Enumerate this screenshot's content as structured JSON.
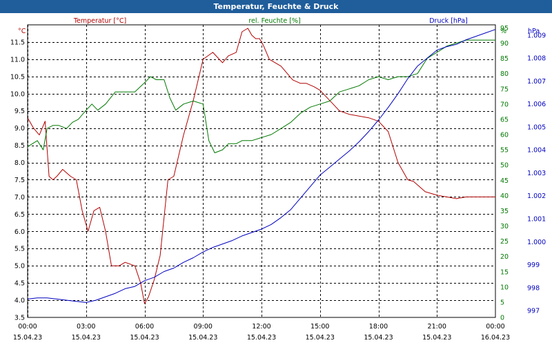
{
  "window": {
    "title": "Temperatur, Feuchte & Druck"
  },
  "colors": {
    "temperature": "#b00000",
    "humidity": "#007800",
    "pressure": "#0000c0",
    "axis_text": "#000000",
    "title_bar": "#1f5d9b"
  },
  "chart_data": {
    "type": "line",
    "title": "Temperatur, Feuchte & Druck",
    "grid": true,
    "x": {
      "range": [
        "15.04.23 00:00",
        "16.04.23 00:00"
      ],
      "ticks": [
        {
          "time": "00:00",
          "date": "15.04.23",
          "hour": 0
        },
        {
          "time": "03:00",
          "date": "15.04.23",
          "hour": 3
        },
        {
          "time": "06:00",
          "date": "15.04.23",
          "hour": 6
        },
        {
          "time": "09:00",
          "date": "15.04.23",
          "hour": 9
        },
        {
          "time": "12:00",
          "date": "15.04.23",
          "hour": 12
        },
        {
          "time": "15:00",
          "date": "15.04.23",
          "hour": 15
        },
        {
          "time": "18:00",
          "date": "15.04.23",
          "hour": 18
        },
        {
          "time": "21:00",
          "date": "15.04.23",
          "hour": 21
        },
        {
          "time": "00:00",
          "date": "16.04.23",
          "hour": 24
        }
      ]
    },
    "axes": {
      "temperature": {
        "label": "Temperatur [°C]",
        "unit": "°C",
        "range": [
          3.5,
          12.0
        ],
        "ticks": [
          "3.5",
          "4.0",
          "4.5",
          "5.0",
          "5.5",
          "6.0",
          "6.5",
          "7.0",
          "7.5",
          "8.0",
          "8.5",
          "9.0",
          "9.5",
          "10.0",
          "10.5",
          "11.0",
          "11.5"
        ]
      },
      "humidity": {
        "label": "rel. Feuchte [%]",
        "unit": "%",
        "range": [
          0,
          96
        ],
        "ticks": [
          "0",
          "5",
          "10",
          "15",
          "20",
          "25",
          "30",
          "35",
          "40",
          "45",
          "50",
          "55",
          "60",
          "65",
          "70",
          "75",
          "80",
          "85",
          "90",
          "95"
        ]
      },
      "pressure": {
        "label": "Druck [hPa]",
        "unit": "hPa",
        "range": [
          996.7,
          1009.45
        ],
        "ticks": [
          "997",
          "998",
          "999",
          "1.000",
          "1.001",
          "1.002",
          "1.003",
          "1.004",
          "1.005",
          "1.006",
          "1.007",
          "1.008",
          "1.009"
        ]
      }
    },
    "series": [
      {
        "name": "Temperatur [°C]",
        "axis": "temperature",
        "color": "#b00000",
        "x": [
          0,
          0.3,
          0.6,
          0.9,
          1.1,
          1.3,
          1.5,
          1.8,
          2.2,
          2.5,
          2.8,
          3.1,
          3.4,
          3.7,
          4.0,
          4.3,
          4.7,
          5.0,
          5.5,
          5.8,
          6.0,
          6.2,
          6.5,
          6.8,
          7.2,
          7.5,
          8.0,
          8.5,
          9.0,
          9.5,
          10.0,
          10.3,
          10.7,
          11.0,
          11.3,
          11.5,
          11.7,
          11.9,
          12.1,
          12.4,
          12.7,
          13.0,
          13.3,
          13.6,
          14.0,
          14.3,
          14.7,
          15.0,
          15.5,
          16.0,
          16.5,
          17.0,
          17.5,
          18.0,
          18.5,
          19.0,
          19.5,
          19.8,
          20.1,
          20.4,
          20.7,
          21.0,
          21.5,
          22.0,
          22.5,
          23.0,
          23.5,
          24.0
        ],
        "values": [
          9.3,
          9.0,
          8.8,
          9.2,
          7.6,
          7.5,
          7.6,
          7.8,
          7.6,
          7.5,
          6.6,
          6.0,
          6.6,
          6.7,
          6.0,
          5.0,
          5.0,
          5.1,
          5.0,
          4.5,
          3.9,
          4.1,
          4.6,
          5.3,
          7.5,
          7.6,
          8.8,
          9.8,
          11.0,
          11.2,
          10.9,
          11.1,
          11.2,
          11.8,
          11.9,
          11.7,
          11.6,
          11.6,
          11.4,
          11.0,
          10.9,
          10.8,
          10.6,
          10.4,
          10.3,
          10.3,
          10.2,
          10.1,
          9.8,
          9.5,
          9.4,
          9.35,
          9.3,
          9.2,
          8.9,
          8.0,
          7.5,
          7.45,
          7.3,
          7.15,
          7.1,
          7.05,
          7.0,
          6.95,
          7.0,
          7.0,
          7.0,
          7.0
        ]
      },
      {
        "name": "rel. Feuchte [%]",
        "axis": "humidity",
        "color": "#007800",
        "x": [
          0,
          0.5,
          0.8,
          1.0,
          1.3,
          1.6,
          2.0,
          2.3,
          2.6,
          3.0,
          3.3,
          3.6,
          4.0,
          4.5,
          5.0,
          5.5,
          6.0,
          6.3,
          6.6,
          7.0,
          7.3,
          7.6,
          8.0,
          8.5,
          9.0,
          9.3,
          9.6,
          10.0,
          10.3,
          10.7,
          11.0,
          11.5,
          12.0,
          12.5,
          13.0,
          13.5,
          14.0,
          14.5,
          15.0,
          15.5,
          16.0,
          16.5,
          17.0,
          17.5,
          18.0,
          18.5,
          19.0,
          19.5,
          20.0,
          20.5,
          21.0,
          21.5,
          22.0,
          22.5,
          23.0,
          23.5,
          24.0
        ],
        "values": [
          56,
          58,
          55,
          62,
          63,
          63,
          62,
          64,
          65,
          68,
          70,
          68,
          70,
          74,
          74,
          74,
          77,
          79,
          78,
          78,
          72,
          68,
          70,
          71,
          70,
          58,
          54,
          55,
          57,
          57,
          58,
          58,
          59,
          60,
          62,
          64,
          67,
          69,
          70,
          71,
          74,
          75,
          76,
          78,
          79,
          78,
          79,
          79,
          80,
          85,
          87,
          89,
          90,
          91,
          91,
          91,
          91
        ]
      },
      {
        "name": "Druck [hPa]",
        "axis": "pressure",
        "color": "#0000c0",
        "x": [
          0,
          0.5,
          1.0,
          1.5,
          2.0,
          2.5,
          3.0,
          3.5,
          4.0,
          4.5,
          5.0,
          5.5,
          6.0,
          6.5,
          7.0,
          7.5,
          8.0,
          8.5,
          9.0,
          9.5,
          10.0,
          10.5,
          11.0,
          11.5,
          12.0,
          12.5,
          13.0,
          13.5,
          14.0,
          14.5,
          15.0,
          15.5,
          16.0,
          16.5,
          17.0,
          17.5,
          18.0,
          18.5,
          19.0,
          19.5,
          20.0,
          20.5,
          21.0,
          21.5,
          22.0,
          22.5,
          23.0,
          23.5,
          24.0
        ],
        "values": [
          997.5,
          997.55,
          997.55,
          997.5,
          997.45,
          997.4,
          997.35,
          997.45,
          997.6,
          997.75,
          997.95,
          998.05,
          998.3,
          998.45,
          998.7,
          998.85,
          999.1,
          999.3,
          999.55,
          999.75,
          999.9,
          1000.05,
          1000.25,
          1000.4,
          1000.55,
          1000.75,
          1001.05,
          1001.4,
          1001.9,
          1002.4,
          1002.9,
          1003.25,
          1003.6,
          1003.95,
          1004.35,
          1004.8,
          1005.3,
          1005.85,
          1006.45,
          1007.1,
          1007.65,
          1008.0,
          1008.35,
          1008.5,
          1008.6,
          1008.8,
          1008.95,
          1009.1,
          1009.25
        ]
      }
    ]
  }
}
